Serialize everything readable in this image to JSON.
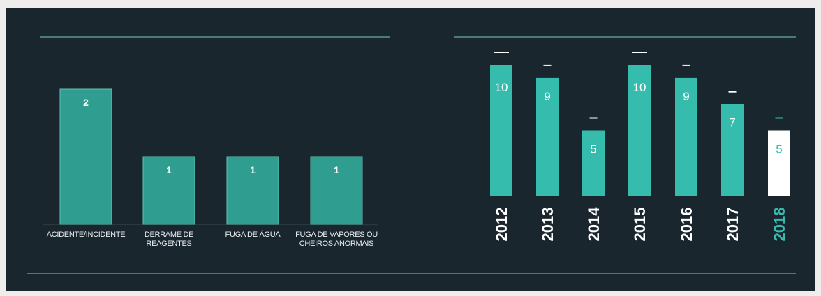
{
  "chart_data": [
    {
      "type": "bar",
      "categories": [
        "ACIDENTE/INCIDENTE",
        "DERRAME DE REAGENTES",
        "FUGA DE ÁGUA",
        "FUGA DE VAPORES OU CHEIROS ANORMAIS"
      ],
      "values": [
        2,
        1,
        1,
        1
      ],
      "color": "#2f9e90",
      "ylim": [
        0,
        2
      ]
    },
    {
      "type": "bar",
      "categories": [
        "2012",
        "2013",
        "2014",
        "2015",
        "2016",
        "2017",
        "2018"
      ],
      "values": [
        10,
        9,
        5,
        10,
        9,
        7,
        5
      ],
      "colors": [
        "#36bcad",
        "#36bcad",
        "#36bcad",
        "#36bcad",
        "#36bcad",
        "#36bcad",
        "#ffffff"
      ],
      "ylim": [
        0,
        10
      ]
    }
  ]
}
